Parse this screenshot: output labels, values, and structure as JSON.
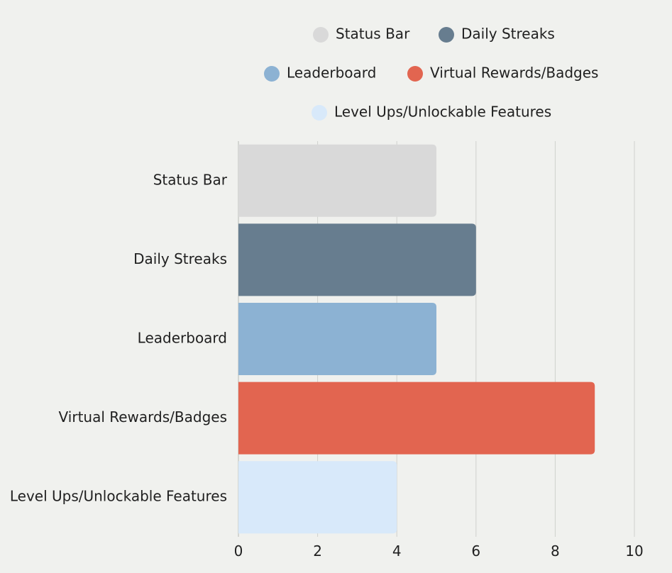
{
  "chart_data": {
    "type": "bar",
    "orientation": "horizontal",
    "categories": [
      "Status Bar",
      "Daily Streaks",
      "Leaderboard",
      "Virtual Rewards/Badges",
      "Level Ups/Unlockable Features"
    ],
    "values": [
      5,
      6,
      5,
      9,
      4
    ],
    "colors": [
      "#d9d9d9",
      "#677d8f",
      "#8cb2d3",
      "#e26550",
      "#d8e9fa"
    ],
    "legend": [
      "Status Bar",
      "Daily Streaks",
      "Leaderboard",
      "Virtual Rewards/Badges",
      "Level Ups/Unlockable Features"
    ],
    "legend_position": "top",
    "xlim": [
      0,
      10
    ],
    "xticks": [
      "0",
      "2",
      "4",
      "6",
      "8",
      "10"
    ],
    "grid": "vertical",
    "title": "",
    "xlabel": "",
    "ylabel": ""
  },
  "colors": {
    "background": "#f0f1ee",
    "gridline": "#cfd1cd",
    "axis": "#b8bab6"
  }
}
